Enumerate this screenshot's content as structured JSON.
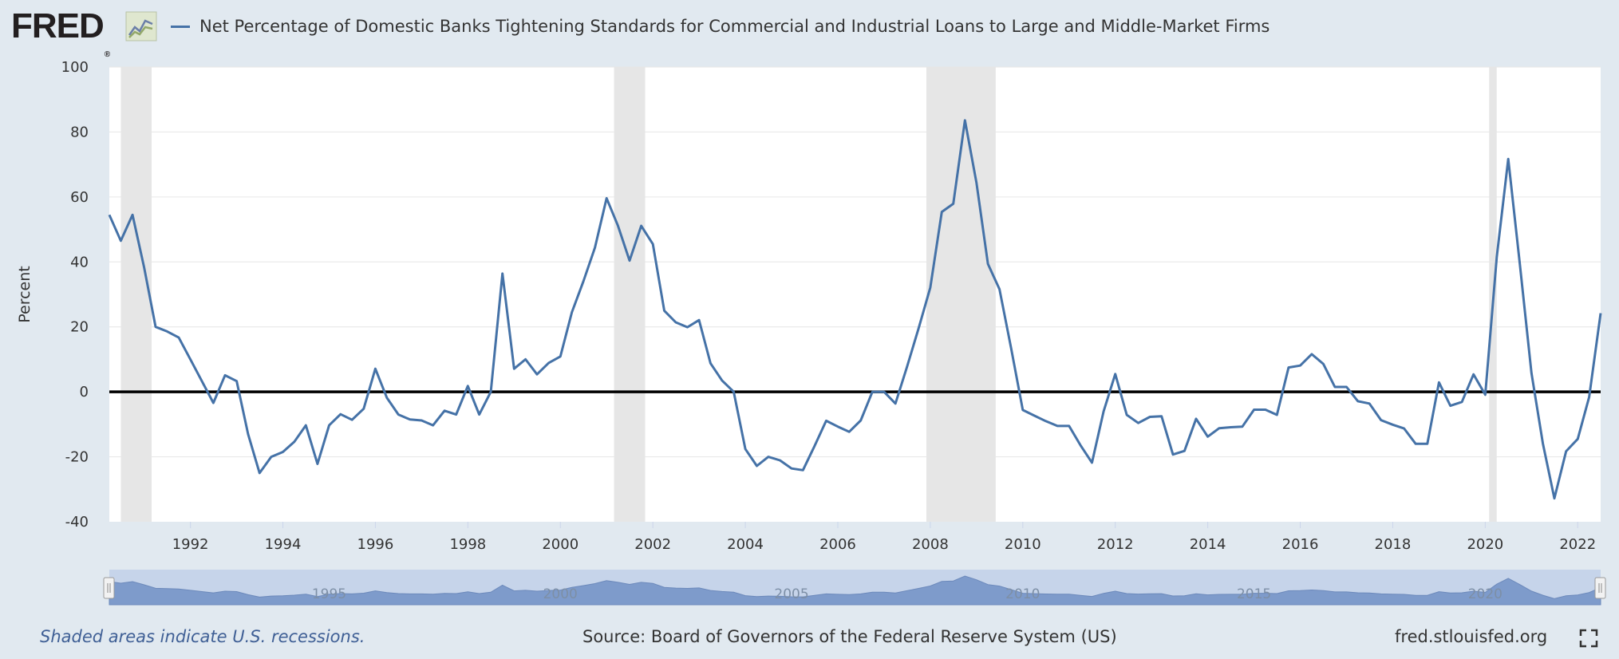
{
  "header": {
    "logo_text": "FRED",
    "logo_mark": "®",
    "legend_label": "Net Percentage of Domestic Banks Tightening Standards for Commercial and Industrial Loans to Large and Middle-Market Firms",
    "legend_color": "#4572a7",
    "graph_icon": "fred-graph-icon"
  },
  "footer": {
    "note": "Shaded areas indicate U.S. recessions.",
    "source": "Source: Board of Governors of the Federal Reserve System (US)",
    "site": "fred.stlouisfed.org",
    "fullscreen_icon": "fullscreen-icon"
  },
  "colors": {
    "background": "#e1e9f0",
    "plot_background": "#ffffff",
    "series": "#4572a7",
    "recession": "#e6e6e6",
    "zero_line": "#000000",
    "navigator": "#b3c4e0"
  },
  "navigator": {
    "labels": [
      "1995",
      "2000",
      "2005",
      "2010",
      "2015",
      "2020"
    ]
  },
  "chart_data": {
    "type": "line",
    "title": "Net Percentage of Domestic Banks Tightening Standards for Commercial and Industrial Loans to Large and Middle-Market Firms",
    "xlabel": "",
    "ylabel": "Percent",
    "xlim": [
      "1990-04-01",
      "2022-07-01"
    ],
    "ylim": [
      -40,
      100
    ],
    "yticks": [
      -40,
      -20,
      0,
      20,
      40,
      60,
      80,
      100
    ],
    "xticks": [
      "1992",
      "1994",
      "1996",
      "1998",
      "2000",
      "2002",
      "2004",
      "2006",
      "2008",
      "2010",
      "2012",
      "2014",
      "2016",
      "2018",
      "2020",
      "2022"
    ],
    "grid": true,
    "legend_position": "top",
    "zero_line": true,
    "recessions": [
      [
        "1990-07-01",
        "1991-03-01"
      ],
      [
        "2001-03-01",
        "2001-11-01"
      ],
      [
        "2007-12-01",
        "2009-06-01"
      ],
      [
        "2020-02-01",
        "2020-04-01"
      ]
    ],
    "series": [
      {
        "name": "Net Percentage of Domestic Banks Tightening Standards for Commercial and Industrial Loans to Large and Middle-Market Firms",
        "color": "#4572a7",
        "x": [
          "1990-04-01",
          "1990-07-01",
          "1990-10-01",
          "1991-01-01",
          "1991-04-01",
          "1991-07-01",
          "1991-10-01",
          "1992-01-01",
          "1992-04-01",
          "1992-07-01",
          "1992-10-01",
          "1993-01-01",
          "1993-04-01",
          "1993-07-01",
          "1993-10-01",
          "1994-01-01",
          "1994-04-01",
          "1994-07-01",
          "1994-10-01",
          "1995-01-01",
          "1995-04-01",
          "1995-07-01",
          "1995-10-01",
          "1996-01-01",
          "1996-04-01",
          "1996-07-01",
          "1996-10-01",
          "1997-01-01",
          "1997-04-01",
          "1997-07-01",
          "1997-10-01",
          "1998-01-01",
          "1998-04-01",
          "1998-07-01",
          "1998-10-01",
          "1999-01-01",
          "1999-04-01",
          "1999-07-01",
          "1999-10-01",
          "2000-01-01",
          "2000-04-01",
          "2000-07-01",
          "2000-10-01",
          "2001-01-01",
          "2001-04-01",
          "2001-07-01",
          "2001-10-01",
          "2002-01-01",
          "2002-04-01",
          "2002-07-01",
          "2002-10-01",
          "2003-01-01",
          "2003-04-01",
          "2003-07-01",
          "2003-10-01",
          "2004-01-01",
          "2004-04-01",
          "2004-07-01",
          "2004-10-01",
          "2005-01-01",
          "2005-04-01",
          "2005-07-01",
          "2005-10-01",
          "2006-01-01",
          "2006-04-01",
          "2006-07-01",
          "2006-10-01",
          "2007-01-01",
          "2007-04-01",
          "2007-07-01",
          "2007-10-01",
          "2008-01-01",
          "2008-04-01",
          "2008-07-01",
          "2008-10-01",
          "2009-01-01",
          "2009-04-01",
          "2009-07-01",
          "2009-10-01",
          "2010-01-01",
          "2010-04-01",
          "2010-07-01",
          "2010-10-01",
          "2011-01-01",
          "2011-04-01",
          "2011-07-01",
          "2011-10-01",
          "2012-01-01",
          "2012-04-01",
          "2012-07-01",
          "2012-10-01",
          "2013-01-01",
          "2013-04-01",
          "2013-07-01",
          "2013-10-01",
          "2014-01-01",
          "2014-04-01",
          "2014-07-01",
          "2014-10-01",
          "2015-01-01",
          "2015-04-01",
          "2015-07-01",
          "2015-10-01",
          "2016-01-01",
          "2016-04-01",
          "2016-07-01",
          "2016-10-01",
          "2017-01-01",
          "2017-04-01",
          "2017-07-01",
          "2017-10-01",
          "2018-01-01",
          "2018-04-01",
          "2018-07-01",
          "2018-10-01",
          "2019-01-01",
          "2019-04-01",
          "2019-07-01",
          "2019-10-01",
          "2020-01-01",
          "2020-04-01",
          "2020-07-01",
          "2020-10-01",
          "2021-01-01",
          "2021-04-01",
          "2021-07-01",
          "2021-10-01",
          "2022-01-01",
          "2022-04-01",
          "2022-07-01"
        ],
        "y": [
          54.5,
          46.5,
          54.5,
          38.2,
          20.0,
          18.6,
          16.7,
          10.0,
          3.3,
          -3.4,
          5.1,
          3.3,
          -13.0,
          -25.0,
          -20.0,
          -18.5,
          -15.4,
          -10.3,
          -22.2,
          -10.3,
          -6.9,
          -8.6,
          -5.2,
          7.1,
          -1.8,
          -7.0,
          -8.5,
          -8.8,
          -10.3,
          -5.8,
          -7.0,
          1.8,
          -7.0,
          0.0,
          36.4,
          7.1,
          10.0,
          5.4,
          8.9,
          10.9,
          24.5,
          34.0,
          44.4,
          59.6,
          51.1,
          40.4,
          51.1,
          45.5,
          25.0,
          21.4,
          19.9,
          22.1,
          8.8,
          3.5,
          0.0,
          -17.6,
          -22.8,
          -20.0,
          -21.1,
          -23.6,
          -24.1,
          -16.7,
          -8.9,
          -10.7,
          -12.3,
          -8.8,
          0.0,
          0.0,
          -3.6,
          7.7,
          19.6,
          32.1,
          55.4,
          57.9,
          83.6,
          64.3,
          39.4,
          31.6,
          13.4,
          -5.6,
          -7.3,
          -9.0,
          -10.5,
          -10.5,
          -16.4,
          -21.8,
          -6.0,
          5.5,
          -7.1,
          -9.6,
          -7.7,
          -7.5,
          -19.3,
          -18.2,
          -8.3,
          -13.8,
          -11.2,
          -10.9,
          -10.7,
          -5.5,
          -5.5,
          -7.1,
          7.5,
          8.1,
          11.6,
          8.6,
          1.5,
          1.5,
          -2.9,
          -3.6,
          -8.7,
          -10.1,
          -11.3,
          -16.0,
          -16.0,
          2.9,
          -4.3,
          -3.1,
          5.4,
          -0.9,
          41.5,
          71.7,
          39.4,
          5.8,
          -15.9,
          -32.8,
          -18.3,
          -14.5,
          -1.6,
          24.2
        ]
      }
    ]
  }
}
